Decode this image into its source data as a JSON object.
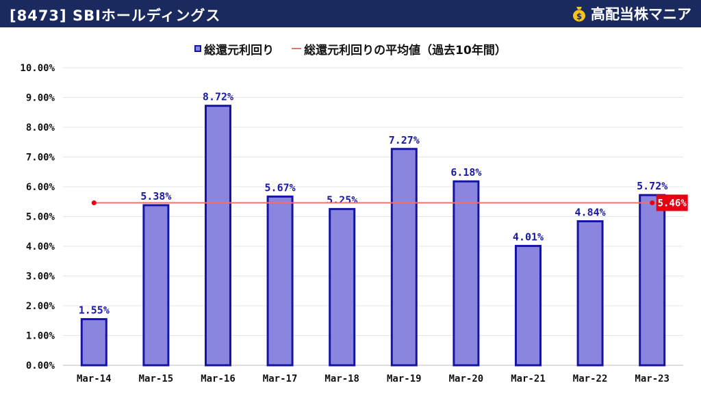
{
  "header": {
    "title": "[8473] SBIホールディングス",
    "brand": "高配当株マニア",
    "brand_icon": "money-bag-icon"
  },
  "colors": {
    "header_bg": "#1a2a5e",
    "bar_fill": "#8a86e0",
    "bar_stroke": "#1414a0",
    "avg_line": "#f07070",
    "avg_badge": "#e60012"
  },
  "chart_data": {
    "type": "bar",
    "categories": [
      "Mar-14",
      "Mar-15",
      "Mar-16",
      "Mar-17",
      "Mar-18",
      "Mar-19",
      "Mar-20",
      "Mar-21",
      "Mar-22",
      "Mar-23"
    ],
    "series": [
      {
        "name": "総還元利回り",
        "values": [
          1.55,
          5.38,
          8.72,
          5.67,
          5.25,
          7.27,
          6.18,
          4.01,
          4.84,
          5.72
        ],
        "labels": [
          "1.55%",
          "5.38%",
          "8.72%",
          "5.67%",
          "5.25%",
          "7.27%",
          "6.18%",
          "4.01%",
          "4.84%",
          "5.72%"
        ]
      }
    ],
    "average": {
      "name": "総還元利回りの平均値（過去10年間）",
      "value": 5.46,
      "label": "5.46%"
    },
    "y_ticks": [
      "0.00%",
      "1.00%",
      "2.00%",
      "3.00%",
      "4.00%",
      "5.00%",
      "6.00%",
      "7.00%",
      "8.00%",
      "9.00%",
      "10.00%"
    ],
    "ylim": [
      0,
      10
    ],
    "grid": true,
    "legend_position": "top"
  }
}
